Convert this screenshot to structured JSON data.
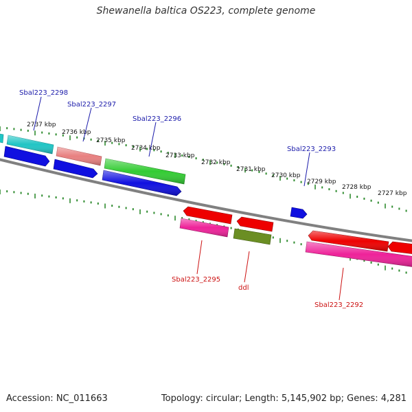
{
  "title": "Shewanella baltica OS223, complete genome",
  "footer": {
    "accession": "Accession: NC_011663",
    "topology": "Topology: circular; Length: 5,145,902 bp; Genes: 4,281"
  },
  "colors": {
    "backbone": "#808080",
    "tick": "#2e8b2e",
    "kbp_label": "#111111",
    "forward_label": "#1a1aaa",
    "reverse_label": "#cc1111"
  },
  "kbp_labels": [
    "2737 kbp",
    "2736 kbp",
    "2735 kbp",
    "2734 kbp",
    "2733 kbp",
    "2732 kbp",
    "2731 kbp",
    "2730 kbp",
    "2729 kbp",
    "2728 kbp",
    "2727 kbp"
  ],
  "gene_labels": {
    "forward": [
      "Sbal223_2298",
      "Sbal223_2297",
      "Sbal223_2296",
      "Sbal223_2293"
    ],
    "reverse": [
      "Sbal223_2295",
      "ddl",
      "Sbal223_2292"
    ]
  },
  "genes": {
    "forward": [
      {
        "color": "#20c5c5"
      },
      {
        "color": "#20c5c5"
      },
      {
        "color": "#e88080"
      },
      {
        "color": "#33cc33"
      },
      {
        "color": "#1010e0"
      },
      {
        "color": "#1010e0"
      },
      {
        "color": "#1010e0"
      },
      {
        "color": "#1010e0"
      }
    ],
    "reverse": [
      {
        "color": "#ee0000"
      },
      {
        "color": "#ee0000"
      },
      {
        "color": "#ee0000"
      },
      {
        "color": "#ee0000"
      },
      {
        "color": "#ee2299"
      },
      {
        "color": "#6b8e23"
      },
      {
        "color": "#ee2299"
      }
    ]
  }
}
